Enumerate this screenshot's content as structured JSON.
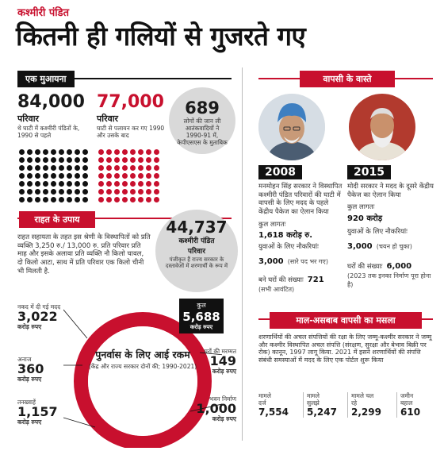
{
  "header": {
    "kicker": "कश्मीरी पंडित",
    "headline": "कितनी ही गलियों से गुजरते गए"
  },
  "overview": {
    "title": "एक मुआयना",
    "families_1990": {
      "value": "84,000",
      "unit": "परिवार",
      "desc": "थे घाटी में कश्मीरी पंडितों के, 1990 से पहले"
    },
    "families_fled": {
      "value": "77,000",
      "unit": "परिवार",
      "desc": "घाटी से पलायन कर गए 1990 और उसके बाद"
    },
    "deaths": {
      "value": "689",
      "desc": "लोगों की जान ली आतंकवादियों ने 1990-91 में, केपीएसएस के मुताबिक"
    },
    "colors": {
      "black": "#111111",
      "red": "#c8102e"
    }
  },
  "relief": {
    "title": "राहत के उपाय",
    "text": "राहत सहायता के तहत इस श्रेणी के विस्थापितों को प्रति व्यक्ति 3,250 रु./ 13,000 रु. प्रति परिवार प्रति माह और इसके अलावा प्रति व्यक्ति नौ किलो चावल, दो किलो आटा, साथ में प्रति परिवार एक किलो चीनी भी मिलती है.",
    "registered": {
      "value": "44,737",
      "line1": "कश्मीरी पंडित",
      "line2": "परिवार",
      "desc": "पंजीकृत हैं राज्य सरकार के दस्तावेजों में शरणार्थी के रूप में"
    }
  },
  "rehab": {
    "center_title": "पुनर्वास के लिए आई रकम",
    "center_sub": "(केंद्र और राज्य सरकार दोनों की; 1990-2021)",
    "total": {
      "label": "कुल",
      "value": "5,688",
      "unit": "करोड़ रुपए"
    },
    "items": [
      {
        "label": "नकद में दी गई मदद",
        "value": "3,022",
        "unit": "करोड़ रुपए"
      },
      {
        "label": "अनाज",
        "value": "360",
        "unit": "करोड़ रुपए"
      },
      {
        "label": "तनख्वाहें",
        "value": "1,157",
        "unit": "करोड़ रुपए"
      },
      {
        "label": "घरों की मरम्मत",
        "value": "149",
        "unit": "करोड़ रुपए"
      },
      {
        "label": "भवन निर्माण",
        "value": "1,000",
        "unit": "करोड़ रुपए"
      }
    ]
  },
  "return": {
    "title": "वापसी के वास्ते",
    "y2008": {
      "year": "2008",
      "desc": "मनमोहन सिंह सरकार ने विस्थापित कश्मीरी पंडित परिवारों की घाटी में वापसी के लिए मदद के पहले केंद्रीय पैकेज का ऐलान किया",
      "cost_label": "कुल लागतः",
      "cost_value": "1,618 करोड़ रु.",
      "jobs_label": "युवाओं के लिए नौकरियांः",
      "jobs_value": "3,000",
      "jobs_note": "(सारे पद भर गए)",
      "houses_label": "बने घरों की संख्याः",
      "houses_value": "721",
      "houses_note": "(सभी आवंटित)"
    },
    "y2015": {
      "year": "2015",
      "desc": "मोदी सरकार ने मदद के दूसरे केंद्रीय पैकेज का ऐलान किया",
      "cost_label": "कुल लागतः",
      "cost_value": "920 करोड़",
      "jobs_label": "युवाओं के लिए नौकरियांः",
      "jobs_value": "3,000",
      "jobs_note": "(चयन हो चुका)",
      "houses_label": "घरों की संख्याः",
      "houses_value": "6,000",
      "houses_note": "(2023 तक इनका निर्माण पूरा होना है)"
    }
  },
  "property": {
    "title": "माल-असबाब वापसी का मसला",
    "text": "शरणार्थियों की अचल संपत्तियों की रक्षा के लिए जम्मू-कश्मीर सरकार ने जम्मू और कश्मीर विस्थापित अचल संपत्ति (संरक्षण, सुरक्षा और बेभाव बिक्री पर रोक) कानून, 1997 लागू किया. 2021 में इसने शरणार्थियों की संपत्ति संबंधी समस्याओं में मदद के लिए एक पोर्टल शुरू किया",
    "stats": [
      {
        "l1": "मामले",
        "l2": "दर्ज",
        "value": "7,554"
      },
      {
        "l1": "मामले",
        "l2": "सुलझे",
        "value": "5,247"
      },
      {
        "l1": "मामले चल",
        "l2": "रहे",
        "value": "2,299"
      },
      {
        "l1": "जमीन",
        "l2": "बहाल",
        "value": "610"
      }
    ]
  }
}
